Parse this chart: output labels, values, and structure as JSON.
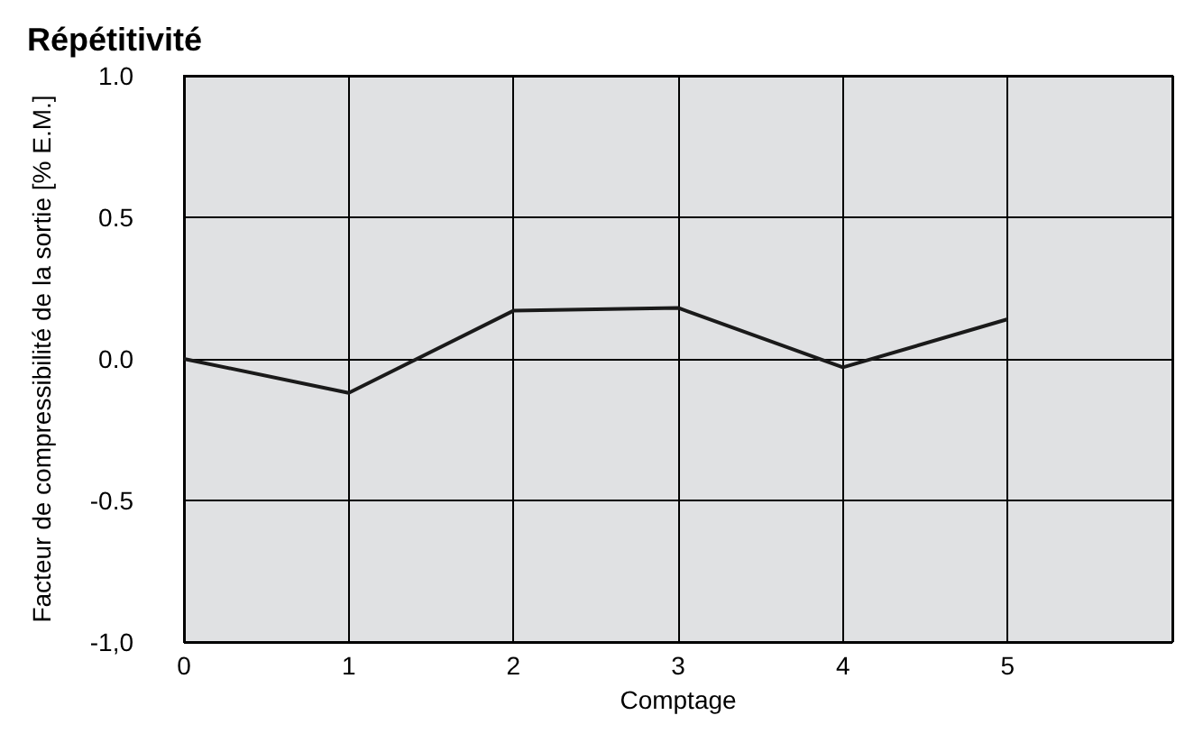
{
  "chart_data": {
    "type": "line",
    "title": "Répétitivité",
    "xlabel": "Comptage",
    "ylabel": "Facteur de compressibilité de la sortie [% E.M.]",
    "x": [
      0,
      1,
      2,
      3,
      4,
      5
    ],
    "series": [
      {
        "color": "#1a1a1a",
        "values": [
          0,
          -0.12,
          0.17,
          0.18,
          -0.03,
          0.14
        ]
      }
    ],
    "xlim": [
      0,
      6
    ],
    "xticks": [
      0,
      1,
      2,
      3,
      4,
      5,
      {
        "value": 6,
        "label": null
      }
    ],
    "ylim": [
      -1,
      1
    ],
    "yticks": [
      {
        "value": -1,
        "label": "-1,0"
      },
      {
        "value": -0.5,
        "label": "-0.5"
      },
      {
        "value": 0,
        "label": "0.0"
      },
      {
        "value": 0.5,
        "label": "0.5"
      },
      {
        "value": 1,
        "label": "1.0"
      }
    ],
    "grid": true,
    "marker": "none",
    "line_style": "solid"
  }
}
